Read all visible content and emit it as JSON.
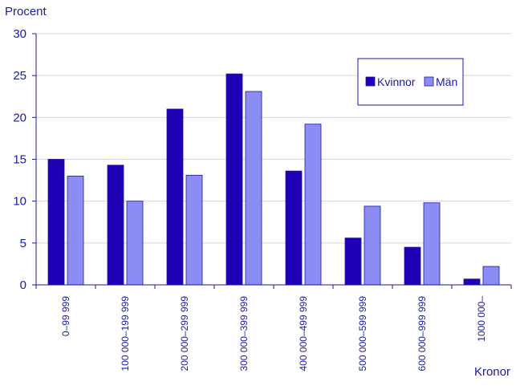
{
  "chart_data": {
    "type": "bar",
    "ylabel": "Procent",
    "xlabel": "Kronor",
    "ylim": [
      0,
      30
    ],
    "yticks": [
      0,
      5,
      10,
      15,
      20,
      25,
      30
    ],
    "categories": [
      "0–99 999",
      "100 000–199 999",
      "200 000–299 999",
      "300 000–399 999",
      "400 000–499 999",
      "500 000–599 999",
      "600 000–999 999",
      "1000 000–"
    ],
    "series": [
      {
        "name": "Kvinnor",
        "color": "#1f00b4",
        "values": [
          15.0,
          14.3,
          21.0,
          25.2,
          13.6,
          5.6,
          4.5,
          0.7
        ]
      },
      {
        "name": "Män",
        "color": "#8c8cf5",
        "values": [
          13.0,
          10.0,
          13.1,
          23.1,
          19.2,
          9.4,
          9.8,
          2.2
        ]
      }
    ],
    "grid": "horizontal",
    "legend_position": "top-right"
  }
}
